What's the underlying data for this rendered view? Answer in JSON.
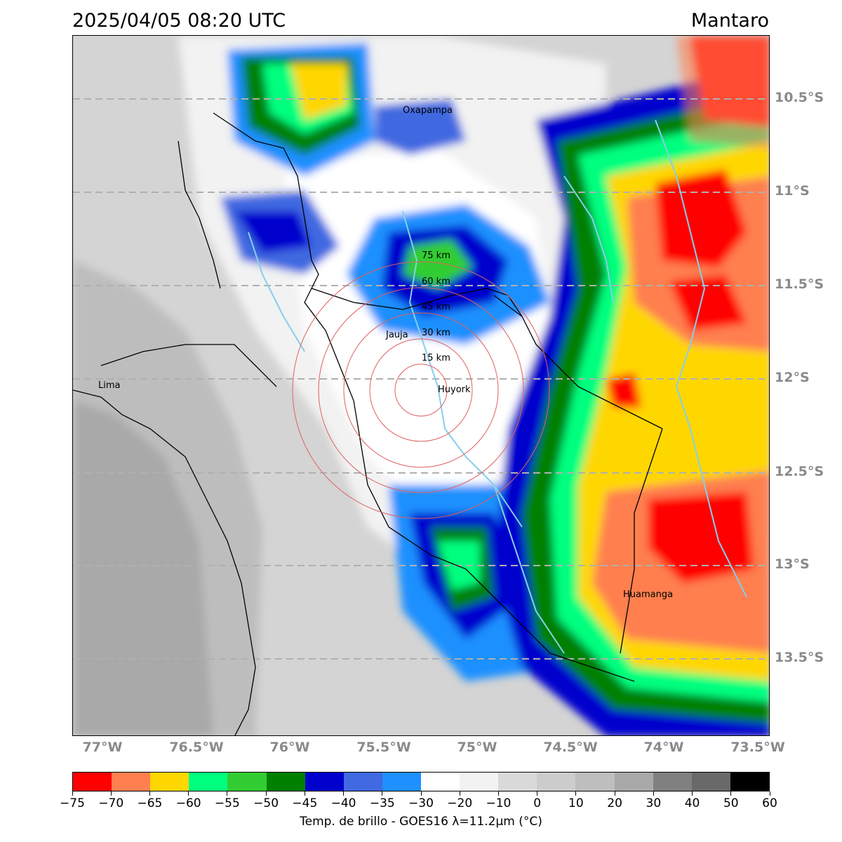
{
  "header": {
    "timestamp": "2025/04/05 08:20 UTC",
    "region": "Mantaro"
  },
  "map": {
    "latitude_labels": [
      "10.5°S",
      "11°S",
      "11.5°S",
      "12°S",
      "12.5°S",
      "13°S",
      "13.5°S"
    ],
    "longitude_labels": [
      "77°W",
      "76.5°W",
      "76°W",
      "75.5°W",
      "75°W",
      "74.5°W",
      "74°W",
      "73.5°W"
    ],
    "cities": [
      "Oxapampa",
      "Jauja",
      "Lima",
      "Huyork",
      "Huamanga"
    ],
    "range_rings": [
      "15 km",
      "30 km",
      "45 km",
      "60 km",
      "75 km"
    ],
    "colors": {
      "grid": "#b0b0b0",
      "axis_label": "#8a8a8a",
      "rivers": "#87ceeb",
      "borders": "#000000",
      "rings": "#e06060"
    }
  },
  "colorbar": {
    "ticks": [
      "−75",
      "−70",
      "−65",
      "−60",
      "−55",
      "−50",
      "−45",
      "−40",
      "−35",
      "−30",
      "−20",
      "−10",
      "0",
      "10",
      "20",
      "30",
      "40",
      "50",
      "60"
    ],
    "colors": [
      "#ff0000",
      "#ff7f50",
      "#ffd700",
      "#00ff7f",
      "#32cd32",
      "#008000",
      "#0000cd",
      "#4169e1",
      "#1e90ff",
      "#ffffff",
      "#f2f2f2",
      "#d9d9d9",
      "#cccccc",
      "#bebebe",
      "#a9a9a9",
      "#808080",
      "#696969",
      "#000000"
    ],
    "title": "Temp. de brillo - GOES16 λ=11.2μm (°C)"
  }
}
